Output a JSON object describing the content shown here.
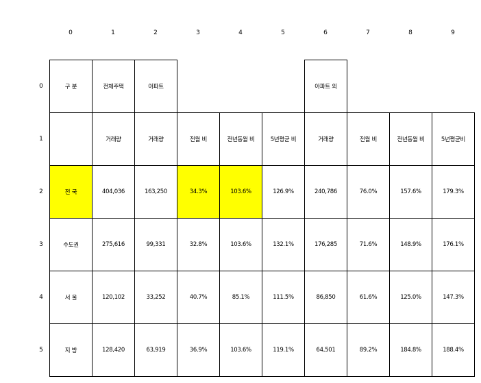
{
  "column_headers": [
    "0",
    "1",
    "2",
    "3",
    "4",
    "5",
    "6",
    "7",
    "8",
    "9"
  ],
  "row_headers": [
    "0",
    "1",
    "2",
    "3",
    "4",
    "5"
  ],
  "highlight_color": "#ffff00",
  "rows": [
    [
      {
        "text": "구 분",
        "bordered": true
      },
      {
        "text": "전체주택",
        "bordered": true
      },
      {
        "text": "아파트",
        "bordered": true
      },
      {
        "text": "",
        "bordered": false
      },
      {
        "text": "",
        "bordered": false
      },
      {
        "text": "",
        "bordered": false
      },
      {
        "text": "아파트 외",
        "bordered": true
      },
      {
        "text": "",
        "bordered": false
      },
      {
        "text": "",
        "bordered": false
      },
      {
        "text": "",
        "bordered": false
      }
    ],
    [
      {
        "text": "",
        "bordered": true
      },
      {
        "text": "거래량",
        "bordered": true
      },
      {
        "text": "거래량",
        "bordered": true
      },
      {
        "text": "전월 비",
        "bordered": true
      },
      {
        "text": "전년동월 비",
        "bordered": true
      },
      {
        "text": "5년평균 비",
        "bordered": true
      },
      {
        "text": "거래량",
        "bordered": true
      },
      {
        "text": "전월 비",
        "bordered": true
      },
      {
        "text": "전년동월 비",
        "bordered": true
      },
      {
        "text": "5년평균비",
        "bordered": true
      }
    ],
    [
      {
        "text": "전 국",
        "bordered": true,
        "highlight": true
      },
      {
        "text": "404,036",
        "bordered": true
      },
      {
        "text": "163,250",
        "bordered": true
      },
      {
        "text": "34.3%",
        "bordered": true,
        "highlight": true
      },
      {
        "text": "103.6%",
        "bordered": true,
        "highlight": true
      },
      {
        "text": "126.9%",
        "bordered": true
      },
      {
        "text": "240,786",
        "bordered": true
      },
      {
        "text": "76.0%",
        "bordered": true
      },
      {
        "text": "157.6%",
        "bordered": true
      },
      {
        "text": "179.3%",
        "bordered": true
      }
    ],
    [
      {
        "text": "수도권",
        "bordered": true
      },
      {
        "text": "275,616",
        "bordered": true
      },
      {
        "text": "99,331",
        "bordered": true
      },
      {
        "text": "32.8%",
        "bordered": true
      },
      {
        "text": "103.6%",
        "bordered": true
      },
      {
        "text": "132.1%",
        "bordered": true
      },
      {
        "text": "176,285",
        "bordered": true
      },
      {
        "text": "71.6%",
        "bordered": true
      },
      {
        "text": "148.9%",
        "bordered": true
      },
      {
        "text": "176.1%",
        "bordered": true
      }
    ],
    [
      {
        "text": "서 울",
        "bordered": true
      },
      {
        "text": "120,102",
        "bordered": true
      },
      {
        "text": "33,252",
        "bordered": true
      },
      {
        "text": "40.7%",
        "bordered": true
      },
      {
        "text": "85.1%",
        "bordered": true
      },
      {
        "text": "111.5%",
        "bordered": true
      },
      {
        "text": "86,850",
        "bordered": true
      },
      {
        "text": "61.6%",
        "bordered": true
      },
      {
        "text": "125.0%",
        "bordered": true
      },
      {
        "text": "147.3%",
        "bordered": true
      }
    ],
    [
      {
        "text": "지 방",
        "bordered": true
      },
      {
        "text": "128,420",
        "bordered": true
      },
      {
        "text": "63,919",
        "bordered": true
      },
      {
        "text": "36.9%",
        "bordered": true
      },
      {
        "text": "103.6%",
        "bordered": true
      },
      {
        "text": "119.1%",
        "bordered": true
      },
      {
        "text": "64,501",
        "bordered": true
      },
      {
        "text": "89.2%",
        "bordered": true
      },
      {
        "text": "184.8%",
        "bordered": true
      },
      {
        "text": "188.4%",
        "bordered": true
      }
    ]
  ]
}
